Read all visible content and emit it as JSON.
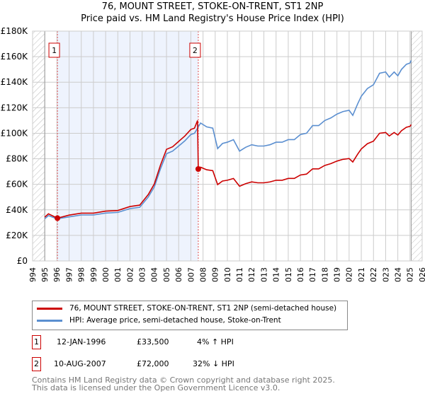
{
  "chart_data": {
    "type": "line",
    "title": "76, MOUNT STREET, STOKE-ON-TRENT, ST1 2NP",
    "subtitle": "Price paid vs. HM Land Registry's House Price Index (HPI)",
    "xlim": [
      1994,
      2026
    ],
    "ylim": [
      0,
      180000
    ],
    "x_ticks": [
      "1994",
      "1995",
      "1996",
      "1997",
      "1998",
      "1999",
      "2000",
      "2001",
      "2002",
      "2003",
      "2004",
      "2005",
      "2006",
      "2007",
      "2008",
      "2009",
      "2010",
      "2011",
      "2012",
      "2013",
      "2014",
      "2015",
      "2016",
      "2017",
      "2018",
      "2019",
      "2020",
      "2021",
      "2022",
      "2023",
      "2024",
      "2025",
      "2026"
    ],
    "y_ticks": [
      {
        "v": 0,
        "l": "£0"
      },
      {
        "v": 20000,
        "l": "£20K"
      },
      {
        "v": 40000,
        "l": "£40K"
      },
      {
        "v": 60000,
        "l": "£60K"
      },
      {
        "v": 80000,
        "l": "£80K"
      },
      {
        "v": 100000,
        "l": "£100K"
      },
      {
        "v": 120000,
        "l": "£120K"
      },
      {
        "v": 140000,
        "l": "£140K"
      },
      {
        "v": 160000,
        "l": "£160K"
      },
      {
        "v": 180000,
        "l": "£180K"
      }
    ],
    "grid": true,
    "hatched_before": 1995,
    "hatched_after": 2025.1,
    "shaded_range": [
      1996.04,
      2007.61
    ],
    "series": [
      {
        "name": "76, MOUNT STREET, STOKE-ON-TRENT, ST1 2NP (semi-detached house)",
        "color": "#cc0000",
        "x": [
          1995,
          1995.3,
          1996.04,
          1997,
          1998,
          1999,
          2000,
          2001,
          2002,
          2002.8,
          2003.5,
          2004,
          2004.5,
          2005,
          2005.5,
          2006,
          2006.5,
          2007,
          2007.3,
          2007.55,
          2007.61,
          2007.8,
          2008.3,
          2008.8,
          2009.2,
          2009.6,
          2010,
          2010.5,
          2011,
          2011.5,
          2012,
          2012.5,
          2013,
          2013.5,
          2014,
          2014.5,
          2015,
          2015.5,
          2016,
          2016.5,
          2017,
          2017.5,
          2018,
          2018.5,
          2019,
          2019.5,
          2020,
          2020.3,
          2020.7,
          2021,
          2021.5,
          2022,
          2022.5,
          2023,
          2023.3,
          2023.7,
          2024,
          2024.3,
          2024.7,
          2025,
          2025.1
        ],
        "y": [
          34.3,
          36.9,
          33.5,
          35.9,
          37.4,
          37.4,
          39,
          39.5,
          42.6,
          43.7,
          52,
          60.3,
          74.9,
          87.4,
          89.4,
          93.6,
          97.8,
          103,
          104,
          110,
          72,
          73.4,
          71.4,
          70.7,
          59.8,
          62.6,
          63.2,
          64.6,
          58.5,
          60.5,
          61.9,
          61.2,
          61.2,
          61.9,
          63.2,
          63.2,
          64.6,
          64.6,
          67.3,
          68,
          72.1,
          72.1,
          74.8,
          76.2,
          78.2,
          79.6,
          80.2,
          77.5,
          83.6,
          87.7,
          91.8,
          93.8,
          100,
          100.6,
          97.9,
          100.6,
          98.6,
          102,
          104.7,
          105.4,
          106.8
        ]
      },
      {
        "name": "HPI: Average price, semi-detached house, Stoke-on-Trent",
        "color": "#5b8fd0",
        "x": [
          1995,
          1995.3,
          1996,
          1997,
          1998,
          1999,
          2000,
          2001,
          2002,
          2002.8,
          2003.5,
          2004,
          2004.5,
          2005,
          2005.5,
          2006,
          2006.5,
          2007,
          2007.3,
          2007.8,
          2008.3,
          2008.8,
          2009.2,
          2009.6,
          2010,
          2010.5,
          2011,
          2011.5,
          2012,
          2012.5,
          2013,
          2013.5,
          2014,
          2014.5,
          2015,
          2015.5,
          2016,
          2016.5,
          2017,
          2017.5,
          2018,
          2018.5,
          2019,
          2019.5,
          2020,
          2020.3,
          2020.7,
          2021,
          2021.5,
          2022,
          2022.5,
          2023,
          2023.3,
          2023.7,
          2024,
          2024.3,
          2024.7,
          2025,
          2025.1
        ],
        "y": [
          33,
          35.5,
          33,
          34.5,
          36,
          36,
          37.5,
          38,
          41,
          42,
          50,
          58,
          72,
          84,
          86,
          90,
          94,
          99,
          100,
          108,
          105,
          104,
          88,
          92,
          93,
          95,
          86,
          89,
          91,
          90,
          90,
          91,
          93,
          93,
          95,
          95,
          99,
          100,
          106,
          106,
          110,
          112,
          115,
          117,
          118,
          114,
          123,
          129,
          135,
          138,
          147,
          148,
          144,
          148,
          145,
          150,
          154,
          155,
          157
        ]
      }
    ],
    "y_units": "thousands GBP",
    "annotations": [
      {
        "label": "1",
        "x": 1996.04,
        "y": 33500
      },
      {
        "label": "2",
        "x": 2007.61,
        "y": 72000
      }
    ]
  },
  "transactions": [
    {
      "num": "1",
      "date": "12-JAN-1996",
      "price": "£33,500",
      "hpi": "4% ↑ HPI"
    },
    {
      "num": "2",
      "date": "10-AUG-2007",
      "price": "£72,000",
      "hpi": "32% ↓ HPI"
    }
  ],
  "footer": {
    "line1": "Contains HM Land Registry data © Crown copyright and database right 2025.",
    "line2": "This data is licensed under the Open Government Licence v3.0."
  }
}
